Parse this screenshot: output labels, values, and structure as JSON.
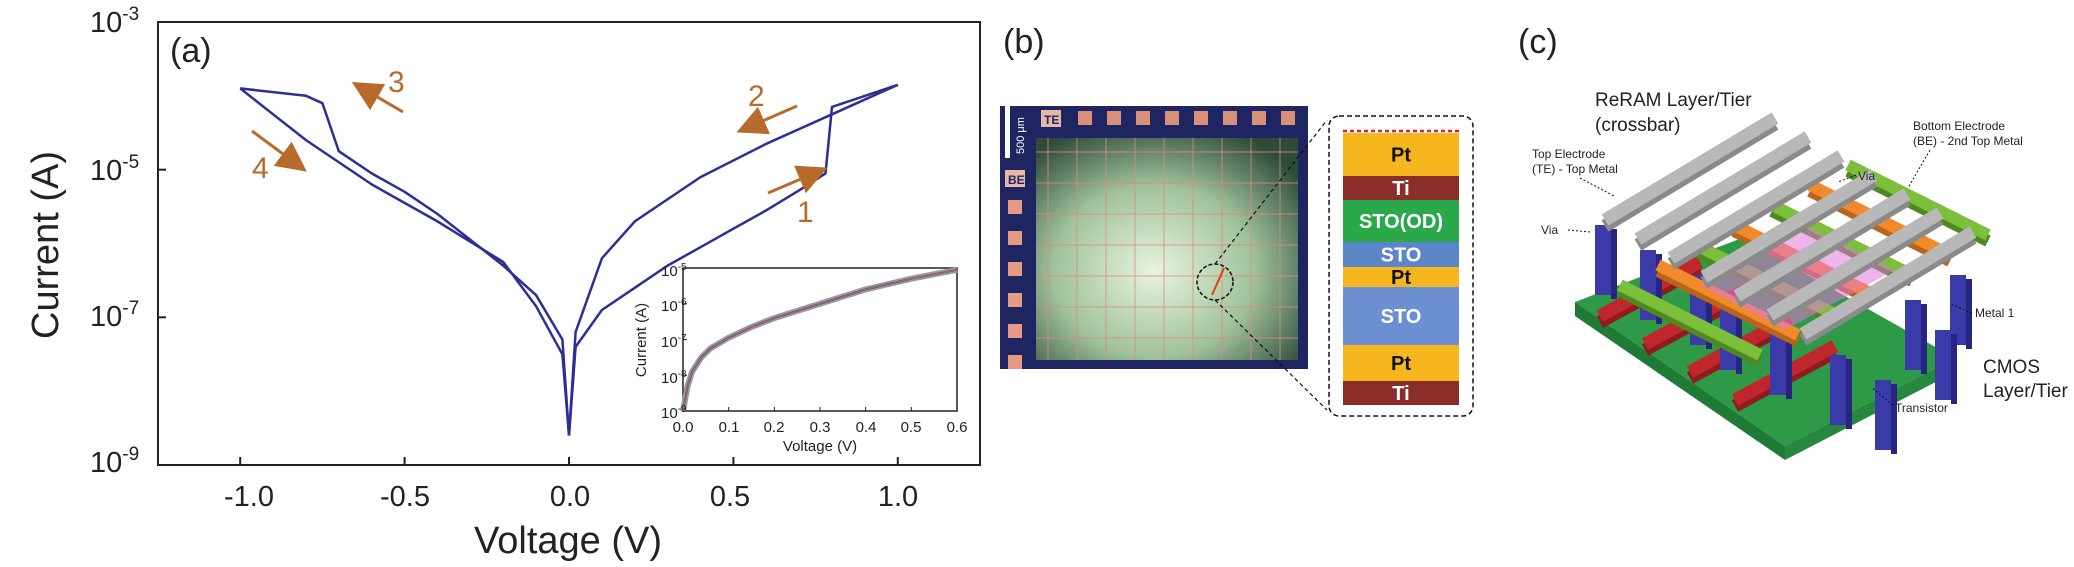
{
  "panels": {
    "a": {
      "label": "(a)"
    },
    "b": {
      "label": "(b)"
    },
    "c": {
      "label": "(c)"
    }
  },
  "chart_data": [
    {
      "type": "line",
      "title": "",
      "xlabel": "Voltage (V)",
      "ylabel": "Current (A)",
      "xlim": [
        -1.25,
        1.25
      ],
      "ylim_log10": [
        -9,
        -3
      ],
      "x_ticks": [
        "-1.0",
        "-0.5",
        "0.0",
        "0.5",
        "1.0"
      ],
      "y_ticks": [
        {
          "base": "10",
          "exp": "-9"
        },
        {
          "base": "10",
          "exp": "-7"
        },
        {
          "base": "10",
          "exp": "-5"
        },
        {
          "base": "10",
          "exp": "-3"
        }
      ],
      "series": [
        {
          "name": "sweep_up_positive",
          "x": [
            0.0,
            0.02,
            0.1,
            0.2,
            0.3,
            0.4,
            0.5,
            0.6,
            0.7,
            0.78,
            0.8,
            1.0
          ],
          "log10_y": [
            -8.6,
            -7.4,
            -6.9,
            -6.6,
            -6.3,
            -6.05,
            -5.8,
            -5.55,
            -5.28,
            -5.05,
            -4.15,
            -3.85
          ]
        },
        {
          "name": "sweep_down_positive",
          "x": [
            1.0,
            0.8,
            0.6,
            0.4,
            0.2,
            0.1,
            0.02,
            0.0
          ],
          "log10_y": [
            -3.85,
            -4.25,
            -4.65,
            -5.1,
            -5.7,
            -6.2,
            -7.2,
            -8.6
          ]
        },
        {
          "name": "sweep_negative_upper",
          "x": [
            0.0,
            -0.02,
            -0.1,
            -0.2,
            -0.3,
            -0.4,
            -0.5,
            -0.6,
            -0.7,
            -0.75,
            -0.8,
            -0.9,
            -1.0
          ],
          "log10_y": [
            -8.6,
            -7.3,
            -6.7,
            -6.3,
            -5.95,
            -5.6,
            -5.3,
            -5.05,
            -4.75,
            -4.1,
            -4.0,
            -3.95,
            -3.9
          ]
        },
        {
          "name": "sweep_negative_lower",
          "x": [
            -1.0,
            -0.9,
            -0.8,
            -0.6,
            -0.4,
            -0.2,
            -0.1,
            -0.02,
            0.0
          ],
          "log10_y": [
            -3.9,
            -4.25,
            -4.6,
            -5.2,
            -5.7,
            -6.25,
            -6.85,
            -7.5,
            -8.6
          ]
        }
      ],
      "annotations": [
        "1",
        "2",
        "3",
        "4"
      ],
      "inset": {
        "type": "line",
        "xlabel": "Voltage (V)",
        "ylabel": "Current (A)",
        "xlim": [
          0.0,
          0.6
        ],
        "ylim_log10": [
          -9,
          -5
        ],
        "x_ticks": [
          "0.0",
          "0.1",
          "0.2",
          "0.3",
          "0.4",
          "0.5",
          "0.6"
        ],
        "y_ticks": [
          {
            "base": "10",
            "exp": "-9"
          },
          {
            "base": "10",
            "exp": "-8"
          },
          {
            "base": "10",
            "exp": "-7"
          },
          {
            "base": "10",
            "exp": "-6"
          },
          {
            "base": "10",
            "exp": "-5"
          }
        ],
        "series": [
          {
            "name": "measured",
            "x": [
              0.0,
              0.01,
              0.02,
              0.04,
              0.06,
              0.1,
              0.15,
              0.2,
              0.3,
              0.4,
              0.5,
              0.6
            ],
            "log10_y": [
              -9.0,
              -8.3,
              -7.9,
              -7.5,
              -7.25,
              -6.95,
              -6.65,
              -6.4,
              -6.0,
              -5.6,
              -5.3,
              -5.05
            ]
          }
        ]
      }
    }
  ],
  "micrograph": {
    "te_label": "TE",
    "be_label": "BE",
    "scale_label": "500 μm"
  },
  "stack": {
    "layers": [
      {
        "name": "Pt",
        "color": "#f6b61e",
        "text_color": "#111111"
      },
      {
        "name": "Ti",
        "color": "#8b2e2a",
        "text_color": "#ffffff"
      },
      {
        "name": "STO(OD)",
        "color": "#2aa84a",
        "text_color": "#ffffff"
      },
      {
        "name": "STO",
        "color": "#5b86c8",
        "text_color": "#ffffff"
      },
      {
        "name": "Pt",
        "color": "#f6b61e",
        "text_color": "#111111"
      },
      {
        "name": "STO",
        "color": "#6b8fd0",
        "text_color": "#ffffff"
      },
      {
        "name": "Pt",
        "color": "#f6b61e",
        "text_color": "#111111"
      },
      {
        "name": "Ti",
        "color": "#8b2e2a",
        "text_color": "#ffffff"
      }
    ]
  },
  "schematic": {
    "reram_line1": "ReRAM Layer/Tier",
    "reram_line2": "(crossbar)",
    "via_top": "Via",
    "bottom_electrode_1": "Bottom Electrode",
    "bottom_electrode_2": "(BE) - 2nd Top Metal",
    "top_electrode_1": "Top Electrode",
    "top_electrode_2": "(TE) - Top Metal",
    "via_left": "Via",
    "metal1": "Metal 1",
    "cmos_1": "CMOS",
    "cmos_2": "Layer/Tier",
    "transistor": "Transistor"
  },
  "colors": {
    "trace": "#2d2f94",
    "arrow": "#b86a2a",
    "inset_trace": "#4a4e9a"
  }
}
